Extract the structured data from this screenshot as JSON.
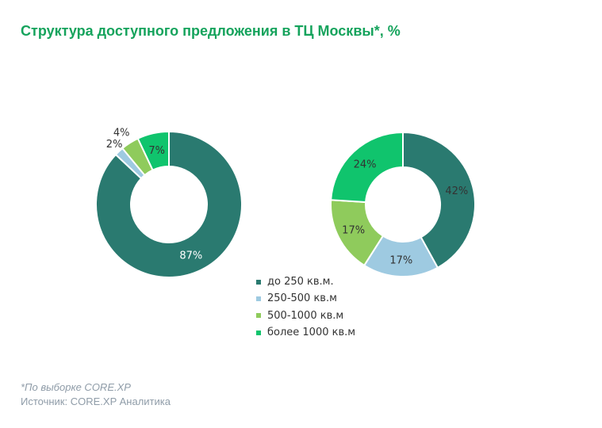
{
  "title": "Структура доступного предложения в ТЦ Москвы*, %",
  "footnote": "*По выборке CORE.XP",
  "source": "Источник: CORE.XP Аналитика",
  "chart_data": [
    {
      "type": "pie",
      "variant": "donut",
      "categories": [
        "до 250 кв.м.",
        "250-500 кв.м",
        "500-1000 кв.м",
        "более 1000 кв.м"
      ],
      "values": [
        87,
        2,
        4,
        7
      ],
      "labels": [
        "87%",
        "2%",
        "4%",
        "7%"
      ]
    },
    {
      "type": "pie",
      "variant": "donut",
      "categories": [
        "до 250 кв.м.",
        "250-500 кв.м",
        "500-1000 кв.м",
        "более 1000 кв.м"
      ],
      "values": [
        42,
        17,
        17,
        24
      ],
      "labels": [
        "42%",
        "17%",
        "17%",
        "24%"
      ]
    }
  ],
  "legend": [
    {
      "label": "до 250 кв.м.",
      "color": "#2a7a70"
    },
    {
      "label": "250-500 кв.м",
      "color": "#9ecae1"
    },
    {
      "label": "500-1000 кв.м",
      "color": "#8fcb5c"
    },
    {
      "label": "более 1000 кв.м",
      "color": "#10c46d"
    }
  ]
}
